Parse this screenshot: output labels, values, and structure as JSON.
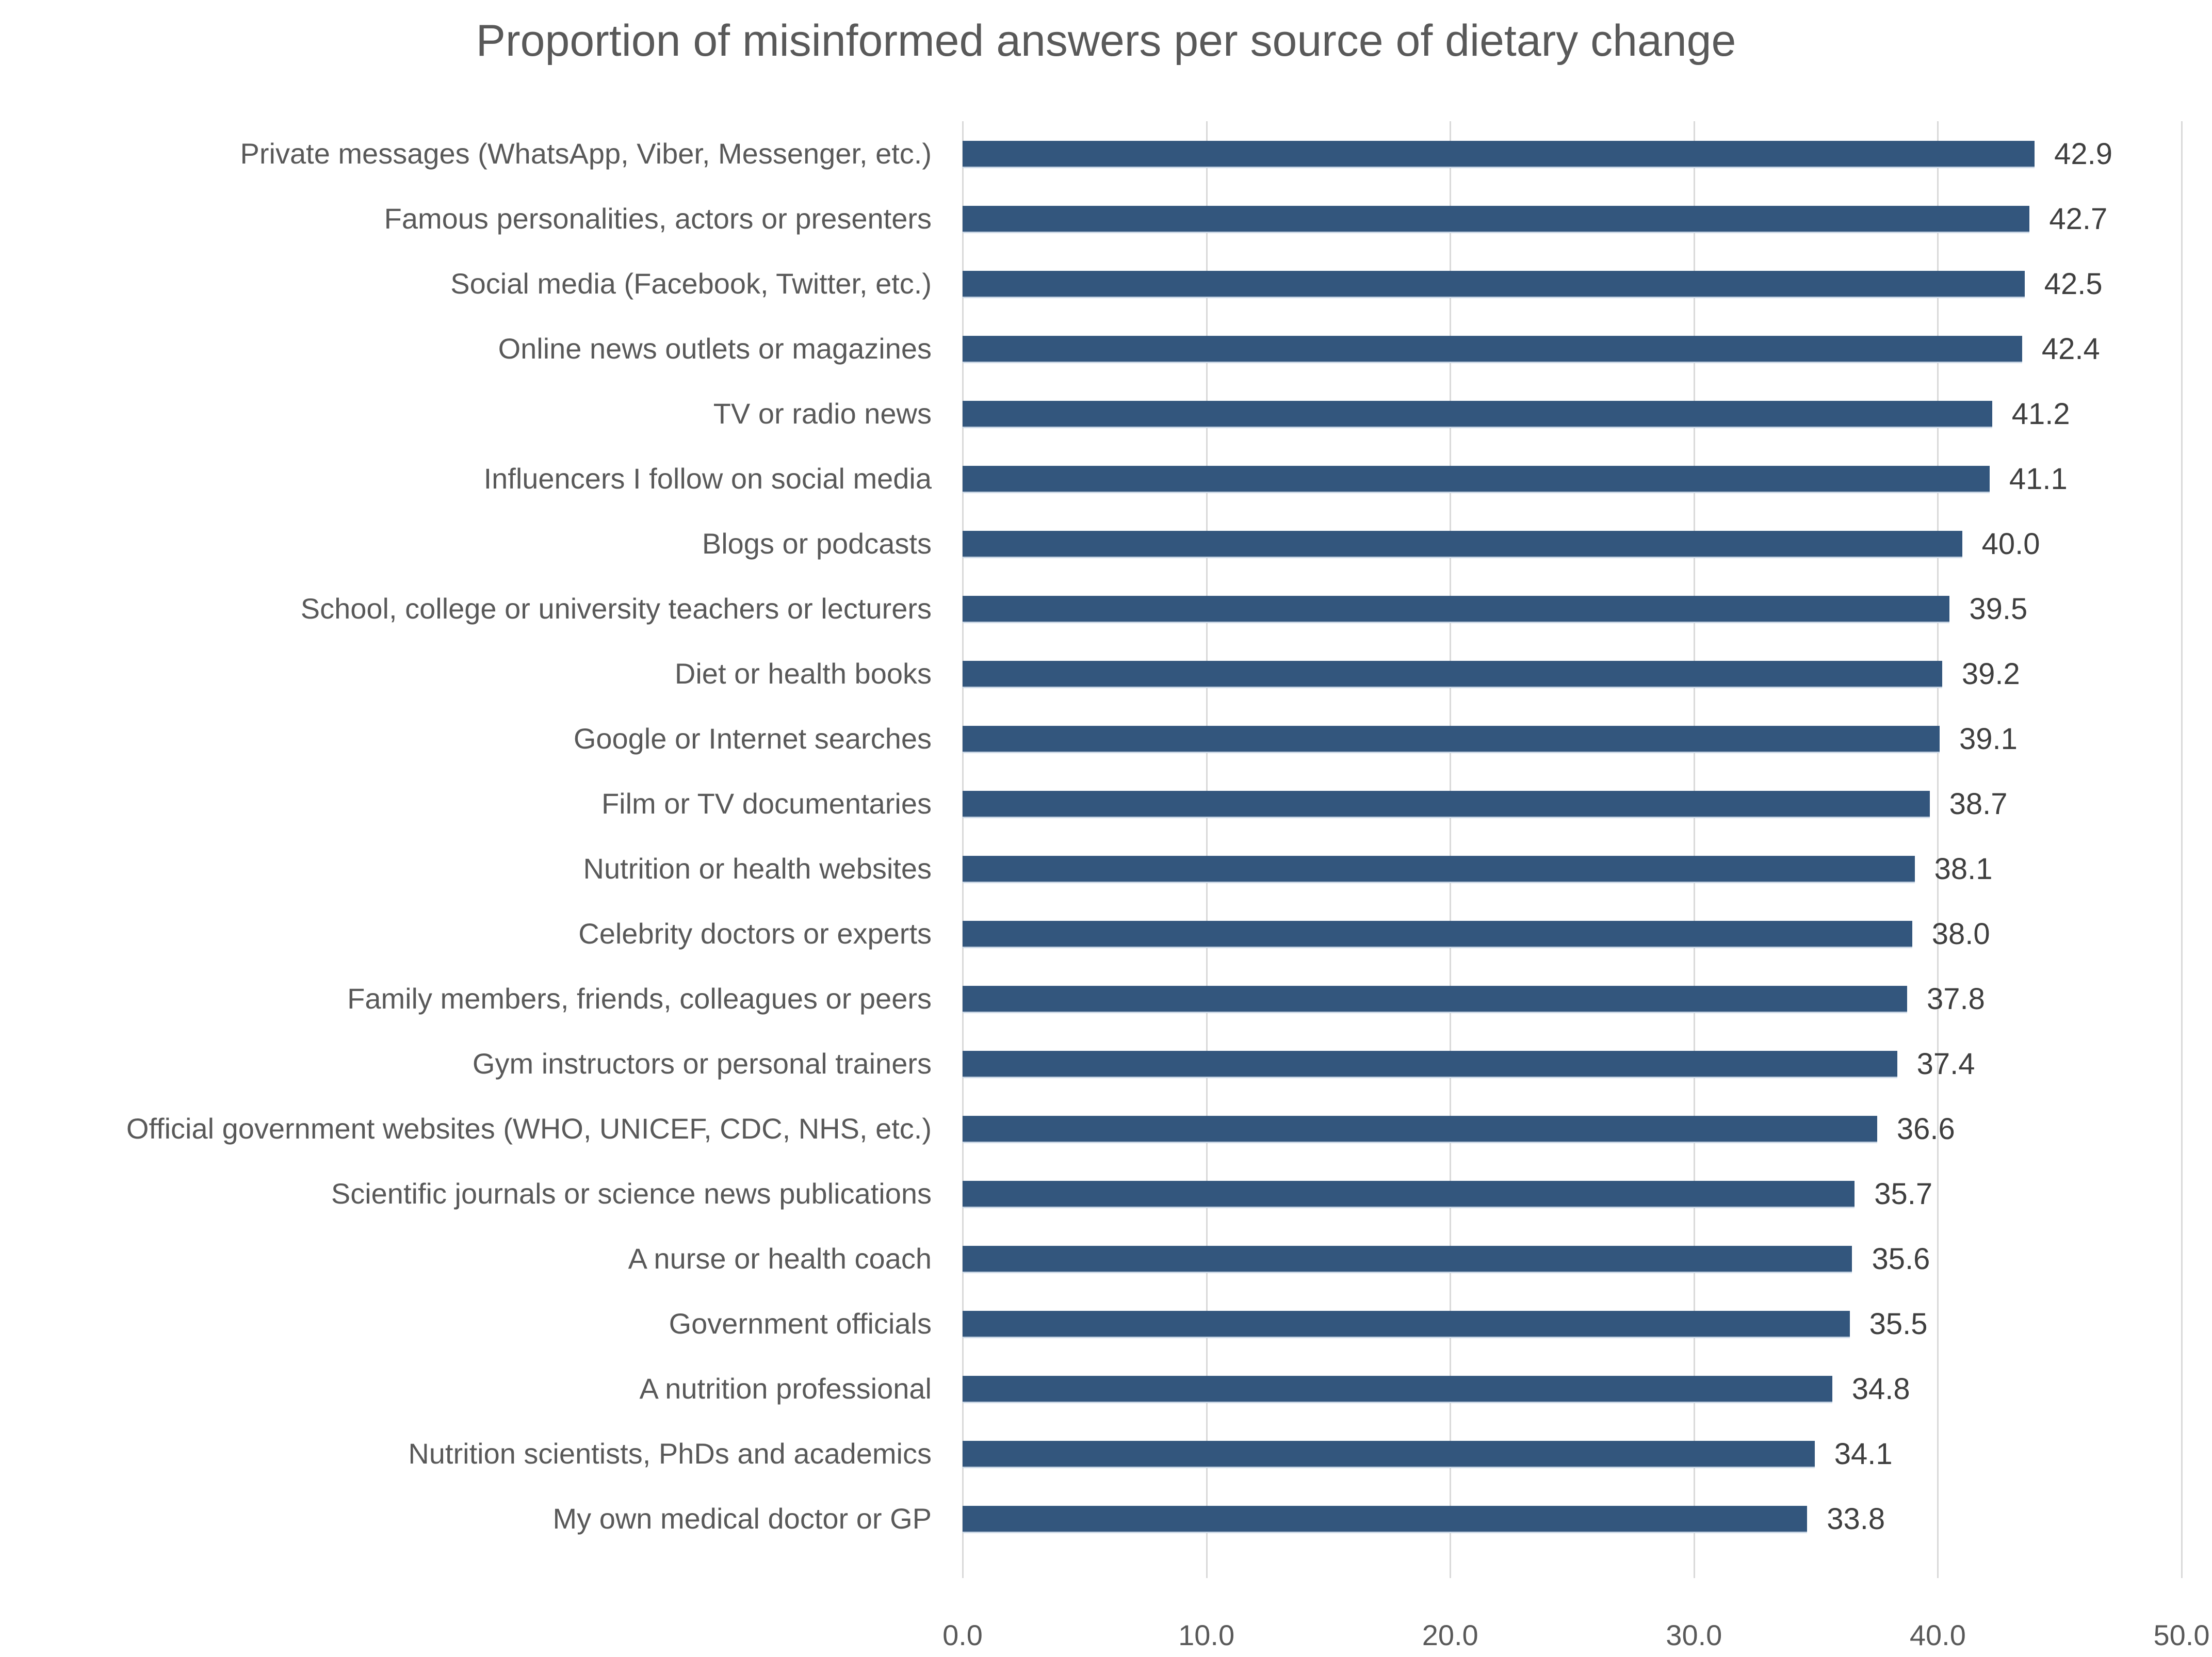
{
  "title": "Proportion of misinformed answers per source of dietary change",
  "colors": {
    "bar": "#33567d",
    "bar_edge": "#c9d6e4",
    "gridline": "#d9d9d9",
    "title_text": "#595959",
    "category_text": "#595959",
    "value_text": "#3f3f3f",
    "background": "#ffffff"
  },
  "chart_data": {
    "type": "bar",
    "orientation": "horizontal",
    "title": "Proportion of misinformed answers per source of dietary change",
    "xlabel": "",
    "ylabel": "",
    "xlim": [
      0,
      50
    ],
    "grid": "vertical-major-gridlines",
    "legend": "none",
    "categories": [
      "Private messages (WhatsApp, Viber, Messenger, etc.)",
      "Famous personalities, actors or presenters",
      "Social media (Facebook, Twitter, etc.)",
      "Online news outlets or magazines",
      "TV or radio news",
      "Influencers I follow on social media",
      "Blogs or podcasts",
      "School, college or university teachers or lecturers",
      "Diet or health books",
      "Google or Internet searches",
      "Film or TV documentaries",
      "Nutrition or health websites",
      "Celebrity doctors or experts",
      "Family members, friends, colleagues or peers",
      "Gym instructors or personal trainers",
      "Official government websites (WHO, UNICEF, CDC, NHS, etc.)",
      "Scientific journals or science news publications",
      "A nurse or health coach",
      "Government officials",
      "A nutrition professional",
      "Nutrition scientists, PhDs and academics",
      "My own medical doctor or GP"
    ],
    "values": [
      42.9,
      42.7,
      42.5,
      42.4,
      41.2,
      41.1,
      40.0,
      39.5,
      39.2,
      39.1,
      38.7,
      38.1,
      38.0,
      37.8,
      37.4,
      36.6,
      35.7,
      35.6,
      35.5,
      34.8,
      34.1,
      33.8
    ],
    "value_labels": [
      "42.9",
      "42.7",
      "42.5",
      "42.4",
      "41.2",
      "41.1",
      "40.0",
      "39.5",
      "39.2",
      "39.1",
      "38.7",
      "38.1",
      "38.0",
      "37.8",
      "37.4",
      "36.6",
      "35.7",
      "35.6",
      "35.5",
      "34.8",
      "34.1",
      "33.8"
    ],
    "x_tick_values": [
      0,
      10,
      20,
      30,
      40,
      50
    ],
    "x_tick_labels": [
      "0.0",
      "10.0",
      "20.0",
      "30.0",
      "40.0",
      "50.0"
    ]
  }
}
